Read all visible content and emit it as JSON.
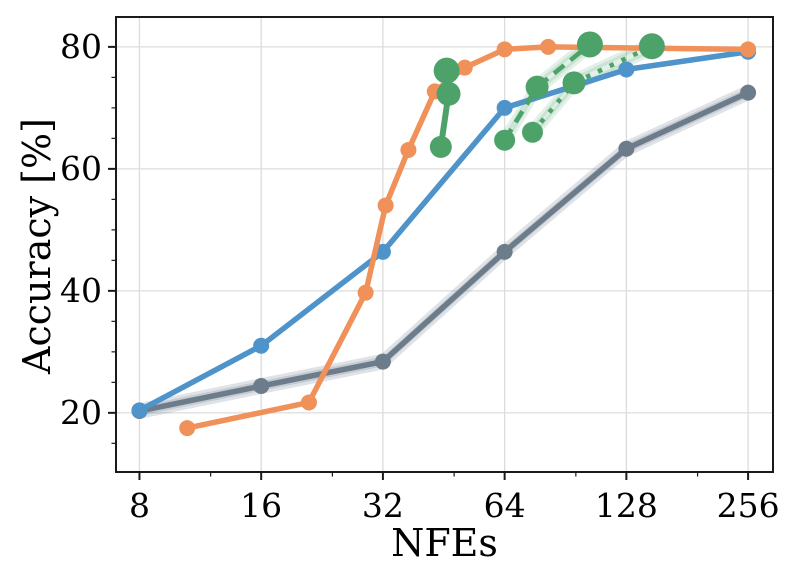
{
  "chart_data": {
    "type": "line",
    "title": "",
    "xlabel": "NFEs",
    "ylabel": "Accuracy [%]",
    "x_scale": "log2",
    "xlim": [
      7.0,
      295
    ],
    "ylim": [
      10.3,
      84.9
    ],
    "x_ticks": [
      8,
      16,
      32,
      64,
      128,
      256
    ],
    "x_minor_ticks": [
      12,
      24,
      48,
      96,
      192
    ],
    "y_ticks": [
      20,
      40,
      60,
      80
    ],
    "y_minor_ticks": [
      15,
      25,
      30,
      35,
      45,
      50,
      55,
      65,
      70,
      75
    ],
    "grid": true,
    "legend_position": "none",
    "colors": {
      "blue": "#4E93C9",
      "orange": "#F0915A",
      "green": "#4DA269",
      "gray": "#6D7C8B",
      "grid": "#DCDCDC",
      "spine": "#1a1a1a",
      "gray_band": "rgba(109,124,139,0.22)",
      "green_band": "rgba(77,162,105,0.16)"
    },
    "series": [
      {
        "name": "gray-baseline",
        "color": "#6D7C8B",
        "line_style": "solid",
        "line_width": 5.5,
        "marker_r": 8,
        "band_halfwidth": 0.8,
        "band_color": "rgba(109,124,139,0.22)",
        "points": [
          [
            8,
            20.3
          ],
          [
            16,
            24.4
          ],
          [
            32,
            28.4
          ],
          [
            64,
            46.4
          ],
          [
            128,
            63.3
          ],
          [
            256,
            72.5
          ]
        ]
      },
      {
        "name": "blue-baseline",
        "color": "#4E93C9",
        "line_style": "solid",
        "line_width": 5.5,
        "marker_r": 8,
        "band_halfwidth": 0,
        "band_color": "none",
        "points": [
          [
            8,
            20.4
          ],
          [
            16,
            31.0
          ],
          [
            32,
            46.4
          ],
          [
            64,
            70.0
          ],
          [
            128,
            76.3
          ],
          [
            256,
            79.2
          ]
        ]
      },
      {
        "name": "orange-baseline",
        "color": "#F0915A",
        "line_style": "solid",
        "line_width": 5.5,
        "marker_r": 8,
        "band_halfwidth": 0,
        "band_color": "none",
        "points": [
          [
            10.5,
            17.5
          ],
          [
            21,
            21.7
          ],
          [
            29,
            39.7
          ],
          [
            32.5,
            54.0
          ],
          [
            37,
            63.1
          ],
          [
            43,
            72.7
          ],
          [
            51,
            76.6
          ],
          [
            64,
            79.6
          ],
          [
            82,
            80.0
          ],
          [
            256,
            79.6
          ]
        ]
      },
      {
        "name": "green-dashed",
        "color": "#4DA269",
        "line_style": "dashed",
        "line_width": 4.6,
        "marker_r": [
          10.5,
          11.5,
          13
        ],
        "band_halfwidth": 1.0,
        "band_color": "rgba(77,162,105,0.16)",
        "points": [
          [
            64,
            64.7
          ],
          [
            77,
            73.4
          ],
          [
            104,
            80.4
          ]
        ]
      },
      {
        "name": "green-dotted",
        "color": "#4DA269",
        "line_style": "dotted",
        "line_width": 4.6,
        "marker_r": [
          10.5,
          11.5,
          13
        ],
        "band_halfwidth": 1.0,
        "band_color": "rgba(77,162,105,0.16)",
        "points": [
          [
            75,
            66.0
          ],
          [
            95,
            74.1
          ],
          [
            148,
            80.1
          ]
        ]
      },
      {
        "name": "green-solid",
        "color": "#4DA269",
        "line_style": "solid",
        "line_width": 6,
        "marker_r": [
          11,
          12,
          13
        ],
        "band_halfwidth": 0,
        "band_color": "none",
        "points": [
          [
            44.5,
            63.6
          ],
          [
            46.5,
            72.3
          ],
          [
            46,
            76.1
          ]
        ]
      }
    ]
  }
}
